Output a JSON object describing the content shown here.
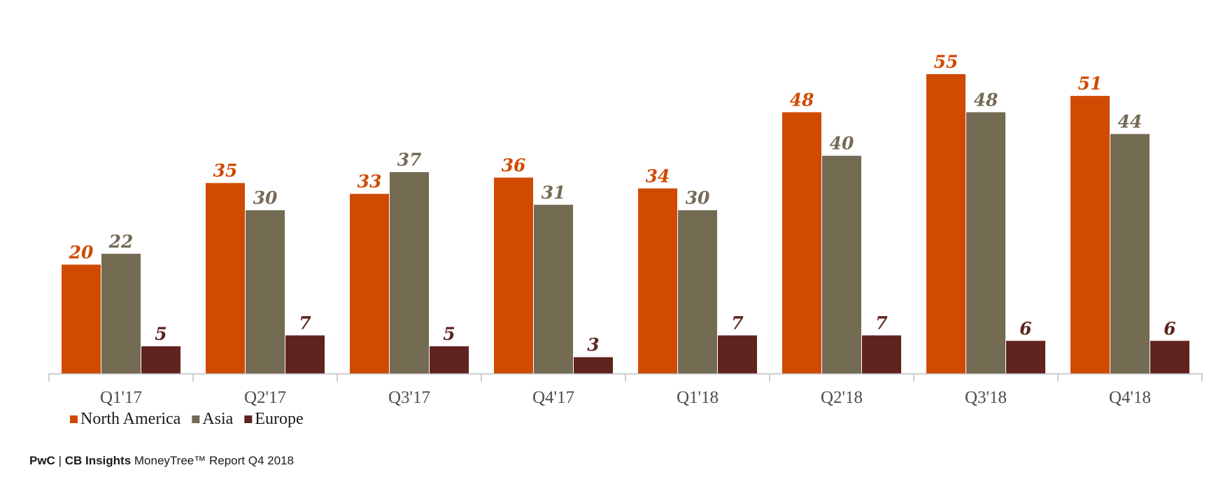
{
  "chart_data": {
    "type": "bar",
    "categories": [
      "Q1'17",
      "Q2'17",
      "Q3'17",
      "Q4'17",
      "Q1'18",
      "Q2'18",
      "Q3'18",
      "Q4'18"
    ],
    "series": [
      {
        "name": "North America",
        "color": "#D04A02",
        "values": [
          20,
          35,
          33,
          36,
          34,
          48,
          55,
          51
        ]
      },
      {
        "name": "Asia",
        "color": "#746B53",
        "values": [
          22,
          30,
          37,
          31,
          30,
          40,
          48,
          44
        ]
      },
      {
        "name": "Europe",
        "color": "#602320",
        "values": [
          5,
          7,
          5,
          3,
          7,
          7,
          6,
          6
        ]
      }
    ],
    "ylim": [
      0,
      55
    ],
    "grid": false,
    "legend_position": "bottom-left",
    "data_labels": true
  },
  "footer": {
    "brand1": "PwC",
    "separator": " | ",
    "brand2": "CB Insights",
    "report": " MoneyTree™ Report Q4 2018"
  },
  "colors": {
    "axis": "#BFBFBF",
    "tick_text": "#4d4d4d",
    "legend_text": "#1a1a1a"
  }
}
